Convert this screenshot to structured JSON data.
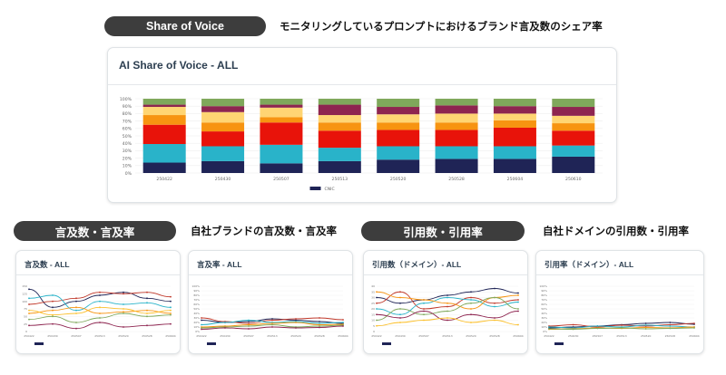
{
  "main": {
    "pill_label": "Share of Voice",
    "caption": "モニタリングしているプロンプトにおけるブランド言及数のシェア率",
    "chart_title": "AI Share of Voice - ALL"
  },
  "sections": [
    {
      "pill_label": "言及数・言及率",
      "caption": "自社ブランドの言及数・言及率"
    },
    {
      "pill_label": "引用数・引用率",
      "caption": "自社ドメインの引用数・引用率"
    }
  ],
  "small_charts": [
    {
      "title": "言及数 - ALL"
    },
    {
      "title": "言及率 - ALL"
    },
    {
      "title": "引用数（ドメイン）- ALL"
    },
    {
      "title": "引用率（ドメイン）- ALL"
    }
  ],
  "colors": {
    "pill_bg": "#3d3d3d",
    "navy": "#1f2456",
    "teal": "#29b3c9",
    "red": "#e8130a",
    "orange": "#f79411",
    "yellow": "#fbc02d",
    "light_yellow": "#ffd573",
    "maroon": "#8e2550",
    "green": "#7fa85b"
  },
  "chart_data": [
    {
      "type": "bar",
      "stacked": true,
      "title": "AI Share of Voice - ALL",
      "categories": [
        "250422",
        "250430",
        "250507",
        "250513",
        "250520",
        "250528",
        "250604",
        "250610"
      ],
      "y_ticks": [
        "0%",
        "10%",
        "20%",
        "30%",
        "40%",
        "50%",
        "60%",
        "70%",
        "80%",
        "90%",
        "100%"
      ],
      "ylim": [
        0,
        100
      ],
      "legend": [
        "CNIC"
      ],
      "series": [
        {
          "color": "#1f2456",
          "values": [
            14,
            16,
            13,
            16,
            18,
            19,
            19,
            22
          ]
        },
        {
          "color": "#29b3c9",
          "values": [
            25,
            20,
            25,
            18,
            18,
            17,
            17,
            15
          ]
        },
        {
          "color": "#e8130a",
          "values": [
            26,
            20,
            30,
            23,
            22,
            22,
            25,
            20
          ]
        },
        {
          "color": "#f79411",
          "values": [
            13,
            12,
            7,
            11,
            10,
            10,
            10,
            10
          ]
        },
        {
          "color": "#ffd573",
          "values": [
            11,
            14,
            13,
            10,
            11,
            12,
            9,
            10
          ]
        },
        {
          "color": "#8e2550",
          "values": [
            3,
            8,
            4,
            14,
            10,
            11,
            10,
            12
          ]
        },
        {
          "color": "#7fa85b",
          "values": [
            8,
            10,
            8,
            8,
            11,
            9,
            10,
            11
          ]
        }
      ]
    },
    {
      "type": "line",
      "title": "言及数 - ALL",
      "x": [
        "250422",
        "250430",
        "250507",
        "250513",
        "250520",
        "250528",
        "250604"
      ],
      "y_ticks": [
        "0",
        "25",
        "50",
        "75",
        "100",
        "125",
        "150"
      ],
      "ylim": [
        0,
        150
      ],
      "series": [
        {
          "color": "#1f2456",
          "values": [
            140,
            80,
            100,
            120,
            130,
            110,
            100
          ]
        },
        {
          "color": "#c0392b",
          "values": [
            90,
            100,
            110,
            130,
            125,
            130,
            115
          ]
        },
        {
          "color": "#29b3c9",
          "values": [
            110,
            120,
            70,
            100,
            90,
            95,
            80
          ]
        },
        {
          "color": "#f79411",
          "values": [
            60,
            70,
            80,
            60,
            65,
            70,
            60
          ]
        },
        {
          "color": "#7fa85b",
          "values": [
            40,
            50,
            30,
            45,
            60,
            50,
            55
          ]
        },
        {
          "color": "#8e2550",
          "values": [
            20,
            25,
            10,
            30,
            15,
            20,
            25
          ]
        },
        {
          "color": "#fbc02d",
          "values": [
            70,
            55,
            60,
            80,
            75,
            60,
            70
          ]
        }
      ]
    },
    {
      "type": "line",
      "title": "言及率 - ALL",
      "x": [
        "250422",
        "250430",
        "250507",
        "250513",
        "250520",
        "250528",
        "250604"
      ],
      "y_ticks": [
        "0%",
        "10%",
        "20%",
        "30%",
        "40%",
        "50%",
        "60%",
        "70%",
        "80%",
        "90%",
        "100%"
      ],
      "ylim": [
        0,
        100
      ],
      "series": [
        {
          "color": "#1f2456",
          "values": [
            25,
            20,
            22,
            28,
            25,
            22,
            18
          ]
        },
        {
          "color": "#c0392b",
          "values": [
            30,
            22,
            18,
            25,
            28,
            30,
            26
          ]
        },
        {
          "color": "#29b3c9",
          "values": [
            15,
            20,
            25,
            20,
            22,
            18,
            20
          ]
        },
        {
          "color": "#f79411",
          "values": [
            10,
            12,
            15,
            18,
            20,
            15,
            16
          ]
        },
        {
          "color": "#7fa85b",
          "values": [
            8,
            10,
            12,
            15,
            10,
            12,
            14
          ]
        },
        {
          "color": "#8e2550",
          "values": [
            5,
            8,
            6,
            10,
            8,
            9,
            12
          ]
        }
      ]
    },
    {
      "type": "line",
      "title": "引用数（ドメイン）- ALL",
      "x": [
        "250422",
        "250430",
        "250507",
        "250513",
        "250520",
        "250528",
        "250604"
      ],
      "y_ticks": [
        "0",
        "5",
        "10",
        "15",
        "20",
        "25",
        "30",
        "35",
        "40"
      ],
      "ylim": [
        0,
        40
      ],
      "series": [
        {
          "color": "#1f2456",
          "values": [
            30,
            25,
            28,
            32,
            35,
            38,
            34
          ]
        },
        {
          "color": "#c0392b",
          "values": [
            25,
            35,
            20,
            22,
            30,
            25,
            28
          ]
        },
        {
          "color": "#29b3c9",
          "values": [
            20,
            15,
            25,
            30,
            28,
            22,
            26
          ]
        },
        {
          "color": "#f79411",
          "values": [
            35,
            30,
            28,
            25,
            20,
            30,
            32
          ]
        },
        {
          "color": "#7fa85b",
          "values": [
            10,
            20,
            15,
            18,
            25,
            30,
            20
          ]
        },
        {
          "color": "#8e2550",
          "values": [
            15,
            12,
            18,
            10,
            15,
            12,
            18
          ]
        },
        {
          "color": "#fbc02d",
          "values": [
            5,
            8,
            10,
            12,
            8,
            10,
            6
          ]
        }
      ]
    },
    {
      "type": "line",
      "title": "引用率（ドメイン）- ALL",
      "x": [
        "250422",
        "250430",
        "250507",
        "250513",
        "250520",
        "250528",
        "250604"
      ],
      "y_ticks": [
        "0%",
        "10%",
        "20%",
        "30%",
        "40%",
        "50%",
        "60%",
        "70%",
        "80%",
        "90%",
        "100%"
      ],
      "ylim": [
        0,
        100
      ],
      "series": [
        {
          "color": "#1f2456",
          "values": [
            8,
            10,
            12,
            15,
            18,
            20,
            16
          ]
        },
        {
          "color": "#c0392b",
          "values": [
            12,
            15,
            10,
            14,
            12,
            15,
            18
          ]
        },
        {
          "color": "#29b3c9",
          "values": [
            10,
            8,
            12,
            10,
            14,
            12,
            10
          ]
        },
        {
          "color": "#f79411",
          "values": [
            5,
            6,
            8,
            7,
            9,
            8,
            10
          ]
        },
        {
          "color": "#7fa85b",
          "values": [
            6,
            5,
            7,
            8,
            6,
            7,
            8
          ]
        }
      ]
    }
  ]
}
